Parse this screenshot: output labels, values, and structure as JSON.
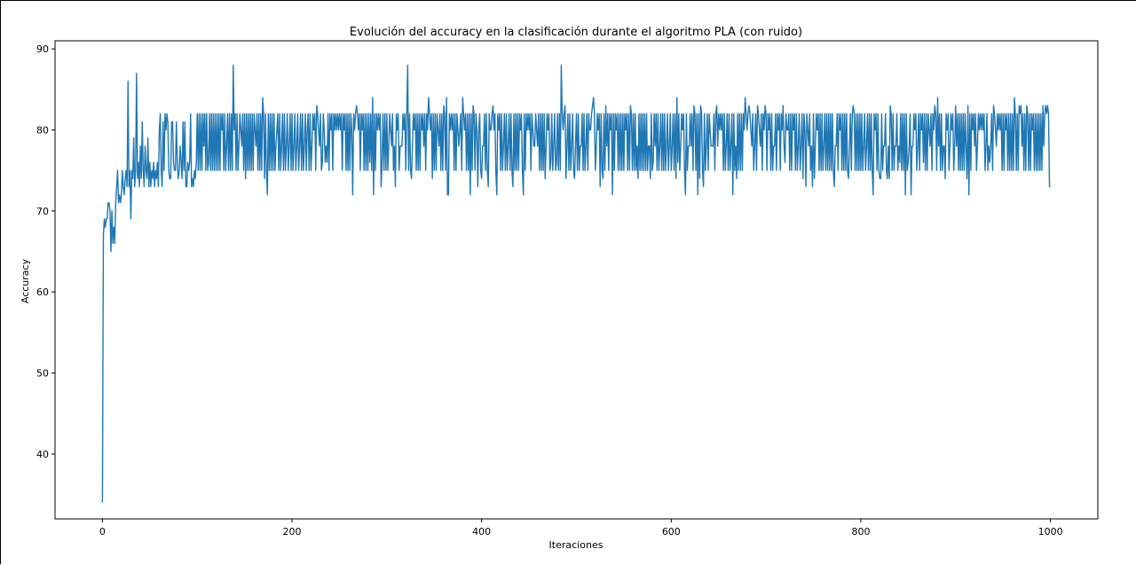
{
  "chart_data": {
    "type": "line",
    "title": "Evolución del accuracy en la clasificación durante el algoritmo PLA (con ruido)",
    "xlabel": "Iteraciones",
    "ylabel": "Accuracy",
    "xlim": [
      -50,
      1050
    ],
    "ylim": [
      32,
      91
    ],
    "xticks": [
      0,
      200,
      400,
      600,
      800,
      1000
    ],
    "yticks": [
      40,
      50,
      60,
      70,
      80,
      90
    ],
    "grid": false,
    "legend": "none",
    "colors": {
      "series": "#1f77b4",
      "axes": "#000000"
    },
    "series": [
      {
        "generator": "pla_noisy_accuracy",
        "points_count": 1001,
        "early_values": [
          [
            0,
            34
          ],
          [
            1,
            67
          ],
          [
            2,
            69
          ],
          [
            3,
            68
          ],
          [
            4,
            69
          ],
          [
            6,
            71
          ],
          [
            8,
            70
          ],
          [
            9,
            65
          ],
          [
            10,
            70
          ],
          [
            11,
            66
          ],
          [
            12,
            68
          ],
          [
            13,
            66
          ],
          [
            14,
            71
          ],
          [
            15,
            73
          ],
          [
            16,
            75
          ],
          [
            17,
            71
          ],
          [
            18,
            72
          ],
          [
            19,
            71
          ],
          [
            20,
            72
          ],
          [
            21,
            75
          ],
          [
            22,
            73
          ],
          [
            23,
            72
          ],
          [
            24,
            74
          ],
          [
            25,
            75
          ],
          [
            26,
            73
          ],
          [
            27,
            86
          ],
          [
            28,
            73
          ],
          [
            29,
            75
          ],
          [
            30,
            69
          ],
          [
            31,
            75
          ],
          [
            32,
            74
          ],
          [
            33,
            79
          ],
          [
            34,
            73
          ],
          [
            35,
            75
          ],
          [
            36,
            87
          ],
          [
            37,
            74
          ],
          [
            38,
            76
          ],
          [
            39,
            73
          ],
          [
            40,
            78
          ],
          [
            41,
            74
          ],
          [
            42,
            81
          ],
          [
            43,
            75
          ],
          [
            44,
            73
          ],
          [
            45,
            78
          ],
          [
            46,
            75
          ],
          [
            47,
            74
          ],
          [
            48,
            79
          ],
          [
            49,
            73
          ],
          [
            50,
            76
          ],
          [
            51,
            73
          ],
          [
            52,
            75
          ],
          [
            53,
            74
          ],
          [
            54,
            76
          ],
          [
            55,
            73
          ],
          [
            56,
            75
          ],
          [
            57,
            74
          ],
          [
            58,
            76
          ],
          [
            59,
            73
          ],
          [
            60,
            80
          ],
          [
            61,
            82
          ],
          [
            62,
            75
          ],
          [
            63,
            73
          ],
          [
            64,
            81
          ]
        ],
        "spikes": [
          [
            138,
            88
          ],
          [
            322,
            88
          ],
          [
            484,
            88
          ]
        ],
        "steady_levels": [
          75,
          82
        ],
        "occasional_values": [
          72,
          73,
          74,
          76,
          78,
          80,
          83,
          84
        ],
        "final_values": [
          [
            999,
            73
          ],
          [
            1000,
            73
          ]
        ]
      }
    ]
  }
}
